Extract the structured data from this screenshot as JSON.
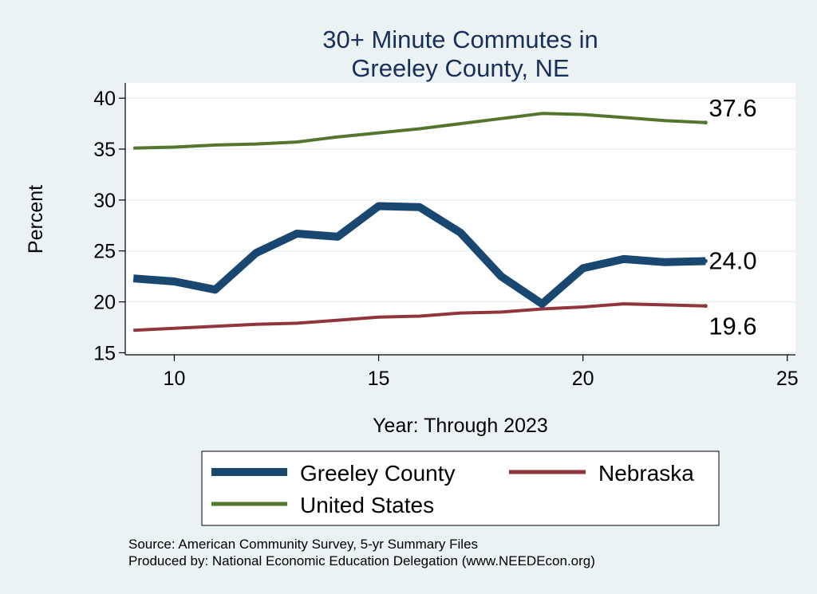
{
  "chart_data": {
    "type": "line",
    "title_lines": [
      "30+ Minute Commutes in",
      "Greeley County, NE"
    ],
    "xlabel": "Year: Through 2023",
    "ylabel": "Percent",
    "xlim": [
      8.8,
      25.2
    ],
    "ylim": [
      14.8,
      41.5
    ],
    "xticks": [
      10,
      15,
      20,
      25
    ],
    "yticks": [
      15,
      20,
      25,
      30,
      35,
      40
    ],
    "grid": true,
    "series": [
      {
        "name": "Greeley County",
        "color": "#1a476f",
        "x": [
          9,
          10,
          11,
          12,
          13,
          14,
          15,
          16,
          17,
          18,
          19,
          20,
          21,
          22,
          23
        ],
        "values": [
          22.3,
          22.0,
          21.2,
          24.8,
          26.7,
          26.4,
          29.4,
          29.3,
          26.8,
          22.5,
          19.8,
          23.3,
          24.2,
          23.9,
          24.0
        ],
        "end_label": "24.0"
      },
      {
        "name": "Nebraska",
        "color": "#90353b",
        "x": [
          9,
          10,
          11,
          12,
          13,
          14,
          15,
          16,
          17,
          18,
          19,
          20,
          21,
          22,
          23
        ],
        "values": [
          17.2,
          17.4,
          17.6,
          17.8,
          17.9,
          18.2,
          18.5,
          18.6,
          18.9,
          19.0,
          19.3,
          19.5,
          19.8,
          19.7,
          19.6
        ],
        "end_label": "19.6"
      },
      {
        "name": "United States",
        "color": "#55752f",
        "x": [
          9,
          10,
          11,
          12,
          13,
          14,
          15,
          16,
          17,
          18,
          19,
          20,
          21,
          22,
          23
        ],
        "values": [
          35.1,
          35.2,
          35.4,
          35.5,
          35.7,
          36.2,
          36.6,
          37.0,
          37.5,
          38.0,
          38.5,
          38.4,
          38.1,
          37.8,
          37.6
        ],
        "end_label": "37.6"
      }
    ],
    "legend_position": "bottom",
    "source_lines": [
      "Source: American Community Survey, 5-yr Summary Files",
      "Produced by: National Economic Education Delegation (www.NEEDEcon.org)"
    ]
  }
}
